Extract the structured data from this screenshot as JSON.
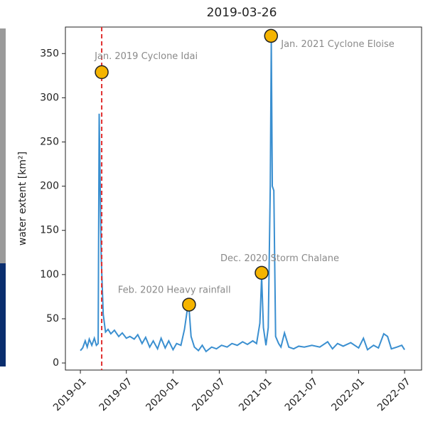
{
  "chart_data": {
    "type": "line",
    "title": "2019-03-26",
    "y_label": "water extent [km²]",
    "x": [
      "2019-01-01",
      "2019-01-10",
      "2019-01-20",
      "2019-01-28",
      "2019-02-05",
      "2019-02-15",
      "2019-02-25",
      "2019-03-05",
      "2019-03-12",
      "2019-03-16",
      "2019-03-24",
      "2019-04-01",
      "2019-04-10",
      "2019-04-20",
      "2019-05-01",
      "2019-05-15",
      "2019-06-01",
      "2019-06-15",
      "2019-07-01",
      "2019-07-15",
      "2019-08-01",
      "2019-08-15",
      "2019-09-01",
      "2019-09-15",
      "2019-10-01",
      "2019-10-15",
      "2019-11-01",
      "2019-11-15",
      "2019-12-01",
      "2019-12-15",
      "2020-01-01",
      "2020-01-15",
      "2020-02-01",
      "2020-02-15",
      "2020-02-25",
      "2020-03-04",
      "2020-03-12",
      "2020-03-25",
      "2020-04-10",
      "2020-04-25",
      "2020-05-10",
      "2020-06-01",
      "2020-06-20",
      "2020-07-10",
      "2020-08-01",
      "2020-08-20",
      "2020-09-10",
      "2020-10-01",
      "2020-10-20",
      "2020-11-10",
      "2020-11-25",
      "2020-12-08",
      "2020-12-15",
      "2020-12-22",
      "2021-01-01",
      "2021-01-10",
      "2021-01-18",
      "2021-01-22",
      "2021-01-26",
      "2021-02-01",
      "2021-02-08",
      "2021-02-20",
      "2021-03-01",
      "2021-03-15",
      "2021-04-01",
      "2021-04-20",
      "2021-05-10",
      "2021-06-01",
      "2021-07-01",
      "2021-08-01",
      "2021-09-01",
      "2021-09-20",
      "2021-10-10",
      "2021-11-01",
      "2021-12-01",
      "2022-01-01",
      "2022-01-20",
      "2022-02-05",
      "2022-03-01",
      "2022-03-20",
      "2022-04-10",
      "2022-04-25",
      "2022-05-10",
      "2022-06-01",
      "2022-06-20",
      "2022-07-01"
    ],
    "series": [
      {
        "color": "#3a8fd0",
        "values": [
          14,
          17,
          25,
          18,
          27,
          20,
          28,
          20,
          22,
          282,
          120,
          55,
          35,
          38,
          33,
          37,
          30,
          34,
          28,
          30,
          27,
          32,
          22,
          29,
          18,
          25,
          16,
          28,
          17,
          25,
          15,
          22,
          20,
          38,
          58,
          62,
          30,
          18,
          14,
          20,
          13,
          18,
          16,
          20,
          18,
          22,
          20,
          24,
          21,
          25,
          22,
          45,
          98,
          40,
          20,
          40,
          200,
          365,
          200,
          195,
          30,
          22,
          18,
          34,
          18,
          16,
          19,
          18,
          20,
          18,
          24,
          16,
          22,
          19,
          23,
          17,
          28,
          15,
          20,
          17,
          33,
          30,
          16,
          18,
          20,
          15
        ]
      }
    ],
    "xlim": [
      "2018-11-03",
      "2022-09-06"
    ],
    "xticks": [
      "2019-01",
      "2019-07",
      "2020-01",
      "2020-07",
      "2021-01",
      "2021-07",
      "2022-01",
      "2022-07"
    ],
    "ylim": [
      -8,
      380
    ],
    "yticks": [
      0,
      50,
      100,
      150,
      200,
      250,
      300,
      350
    ],
    "vline": {
      "x": "2019-03-26",
      "color": "#e03030"
    },
    "annotations": [
      {
        "x": "2019-03-26",
        "y": 329,
        "text": "Jan. 2019 Cyclone Idai"
      },
      {
        "x": "2021-01-21",
        "y": 370,
        "text": "Jan. 2021 Cyclone Eloise"
      },
      {
        "x": "2020-03-04",
        "y": 66,
        "text": "Feb. 2020 Heavy rainfall"
      },
      {
        "x": "2020-12-15",
        "y": 102,
        "text": "Dec. 2020 Storm Chalane"
      }
    ],
    "marker_color": "#f5b400"
  }
}
